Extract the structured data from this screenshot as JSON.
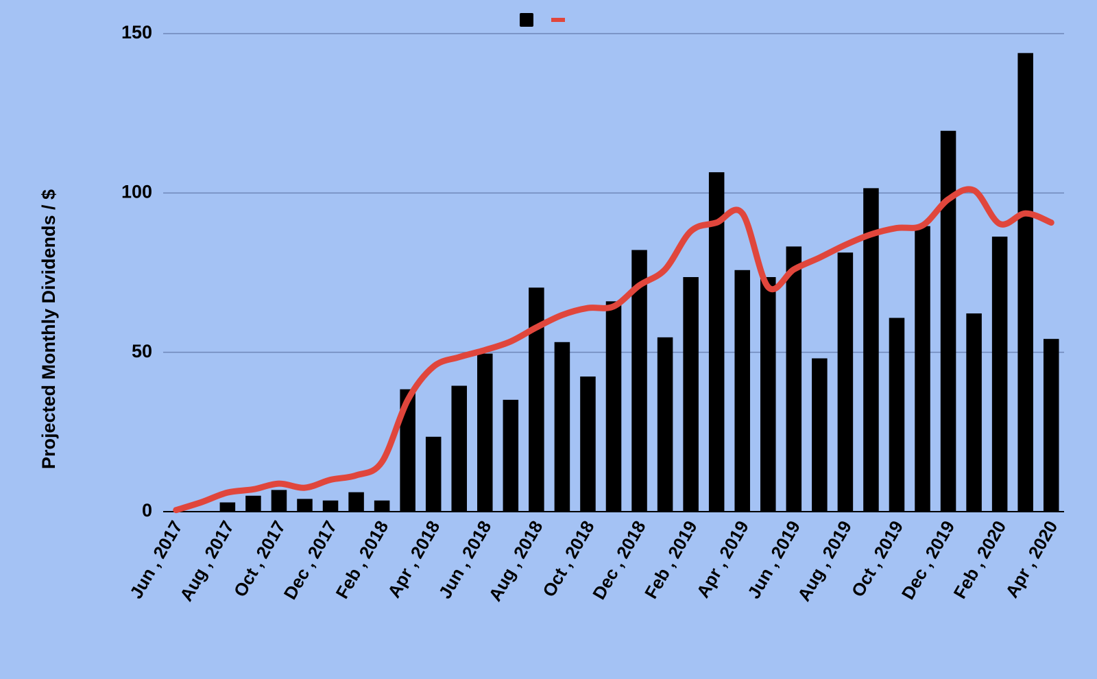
{
  "chart_data": {
    "type": "bar",
    "y_label": "Projected Monthly Dividends / $",
    "categories": [
      "Jun , 2017",
      null,
      "Aug , 2017",
      null,
      "Oct , 2017",
      null,
      "Dec , 2017",
      null,
      "Feb , 2018",
      null,
      "Apr , 2018",
      null,
      "Jun , 2018",
      null,
      "Aug , 2018",
      null,
      "Oct , 2018",
      null,
      "Dec , 2018",
      null,
      "Feb , 2019",
      null,
      "Apr , 2019",
      null,
      "Jun , 2019",
      null,
      "Aug , 2019",
      null,
      "Oct , 2019",
      null,
      "Dec , 2019",
      null,
      "Feb , 2020",
      null,
      "Apr , 2020"
    ],
    "series": [
      {
        "type": "bar",
        "color": "#000000",
        "values": [
          0,
          0,
          2.9,
          5,
          6.8,
          4,
          3.5,
          6.1,
          3.5,
          38.4,
          23.5,
          39.5,
          49.6,
          35.1,
          70.3,
          53.2,
          42.4,
          66,
          82.1,
          54.7,
          73.6,
          106.5,
          75.8,
          73.6,
          83.2,
          48.1,
          81.3,
          101.5,
          60.8,
          89.6,
          119.5,
          62.2,
          86.3,
          143.9,
          54.2
        ]
      },
      {
        "type": "line",
        "color": "#e0463c",
        "values": [
          0.5,
          3,
          6,
          7,
          8.8,
          7.5,
          10,
          11.4,
          15.6,
          35,
          45.5,
          48.5,
          50.7,
          53.4,
          57.8,
          61.7,
          63.9,
          64.4,
          71,
          76,
          88,
          90.7,
          93.6,
          70.5,
          76,
          79.7,
          83.7,
          87,
          89,
          89.8,
          98,
          100.8,
          90.3,
          93.6,
          90.7
        ]
      }
    ],
    "ylim": [
      0,
      150
    ],
    "yticks": [
      0,
      50,
      100,
      150
    ],
    "grid": true,
    "legend": "top"
  }
}
